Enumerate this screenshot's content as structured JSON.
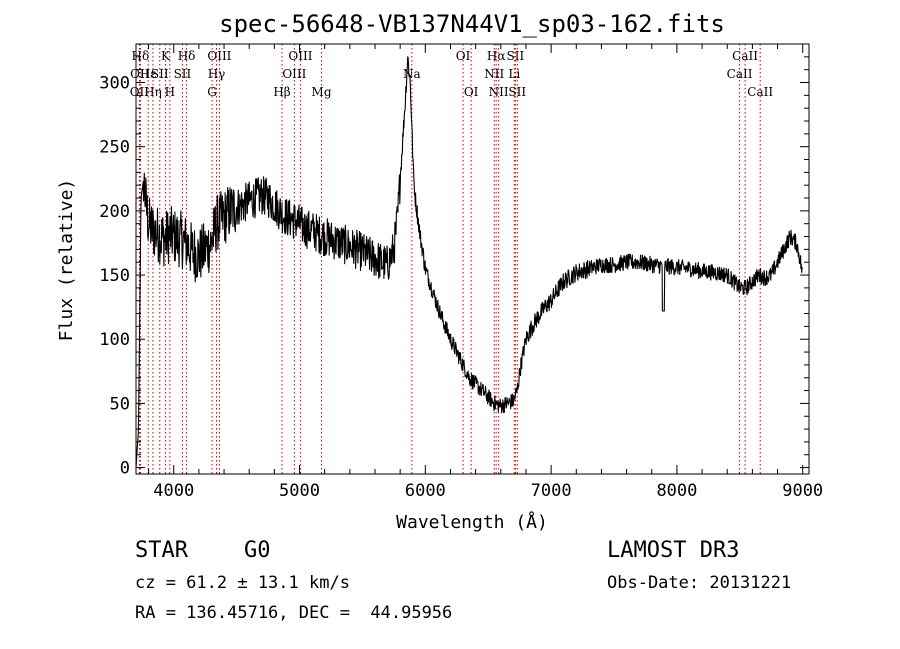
{
  "chart_data": {
    "type": "line",
    "title": "spec-56648-VB137N44V1_sp03-162.fits",
    "xlabel": "Wavelength (Å)",
    "ylabel": "Flux (relative)",
    "xlim": [
      3700,
      9050
    ],
    "ylim": [
      -5,
      330
    ],
    "x_ticks": [
      4000,
      5000,
      6000,
      7000,
      8000,
      9000
    ],
    "y_ticks": [
      0,
      50,
      100,
      150,
      200,
      250,
      300
    ],
    "grid": false,
    "line_color": "#000000",
    "marker_color": "#cc0000",
    "spectrum_anchors": {
      "x": [
        3700,
        3720,
        3740,
        3760,
        3780,
        3800,
        3830,
        3860,
        3900,
        3930,
        3970,
        4000,
        4050,
        4100,
        4150,
        4200,
        4250,
        4300,
        4340,
        4400,
        4450,
        4500,
        4550,
        4600,
        4650,
        4700,
        4750,
        4800,
        4860,
        4900,
        4950,
        5000,
        5050,
        5100,
        5150,
        5200,
        5250,
        5300,
        5350,
        5400,
        5450,
        5500,
        5550,
        5600,
        5650,
        5700,
        5750,
        5780,
        5810,
        5840,
        5860,
        5880,
        5895,
        5905,
        5920,
        5940,
        5960,
        5980,
        6000,
        6050,
        6100,
        6150,
        6200,
        6250,
        6300,
        6350,
        6400,
        6450,
        6500,
        6550,
        6600,
        6650,
        6700,
        6730,
        6760,
        6800,
        6850,
        6900,
        6950,
        7000,
        7050,
        7100,
        7200,
        7300,
        7400,
        7500,
        7600,
        7700,
        7800,
        7900,
        8000,
        8100,
        8200,
        8300,
        8400,
        8450,
        8500,
        8550,
        8600,
        8650,
        8700,
        8750,
        8800,
        8850,
        8900,
        8950,
        8980,
        9000
      ],
      "y": [
        0,
        30,
        210,
        225,
        205,
        190,
        185,
        183,
        180,
        178,
        182,
        180,
        178,
        175,
        168,
        165,
        170,
        175,
        190,
        195,
        200,
        203,
        205,
        208,
        210,
        212,
        210,
        205,
        198,
        195,
        193,
        190,
        186,
        185,
        182,
        180,
        178,
        176,
        174,
        172,
        170,
        168,
        165,
        163,
        160,
        158,
        170,
        195,
        240,
        285,
        320,
        300,
        260,
        230,
        210,
        195,
        180,
        168,
        155,
        140,
        125,
        112,
        100,
        90,
        80,
        70,
        65,
        60,
        55,
        50,
        48,
        50,
        52,
        60,
        80,
        100,
        110,
        118,
        125,
        130,
        138,
        145,
        152,
        155,
        158,
        158,
        160,
        160,
        158,
        157,
        156,
        155,
        153,
        152,
        150,
        145,
        140,
        140,
        145,
        150,
        148,
        150,
        160,
        170,
        180,
        175,
        162,
        150
      ]
    },
    "line_markers": [
      {
        "label": "Hδ",
        "x": 3735,
        "row": 0
      },
      {
        "label": "OII",
        "x": 3730,
        "row": 1
      },
      {
        "label": "OII",
        "x": 3727,
        "row": 2
      },
      {
        "label": "Hε",
        "x": 3797,
        "row": 1
      },
      {
        "label": "Hη",
        "x": 3835,
        "row": 2
      },
      {
        "label": "K",
        "x": 3934,
        "row": 0
      },
      {
        "label": "H",
        "x": 3969,
        "row": 2
      },
      {
        "label": "SII",
        "x": 3889,
        "row": 1
      },
      {
        "label": "Hδ",
        "x": 4102,
        "row": 0
      },
      {
        "label": "SII",
        "x": 4069,
        "row": 1
      },
      {
        "label": "OIII",
        "x": 4363,
        "row": 0
      },
      {
        "label": "Hγ",
        "x": 4340,
        "row": 1
      },
      {
        "label": "G",
        "x": 4305,
        "row": 2
      },
      {
        "label": "Hβ",
        "x": 4861,
        "row": 2
      },
      {
        "label": "OIII",
        "x": 5007,
        "row": 0
      },
      {
        "label": "OIII",
        "x": 4959,
        "row": 1
      },
      {
        "label": "Mg",
        "x": 5175,
        "row": 2
      },
      {
        "label": "Na",
        "x": 5893,
        "row": 1
      },
      {
        "label": "OI",
        "x": 6300,
        "row": 0
      },
      {
        "label": "OI",
        "x": 6364,
        "row": 2
      },
      {
        "label": "Hα",
        "x": 6563,
        "row": 0
      },
      {
        "label": "NII",
        "x": 6548,
        "row": 1
      },
      {
        "label": "NII",
        "x": 6583,
        "row": 2
      },
      {
        "label": "SII",
        "x": 6716,
        "row": 0
      },
      {
        "label": "Li",
        "x": 6707,
        "row": 1
      },
      {
        "label": "SII",
        "x": 6731,
        "row": 2
      },
      {
        "label": "CaII",
        "x": 8542,
        "row": 0
      },
      {
        "label": "CaII",
        "x": 8498,
        "row": 1
      },
      {
        "label": "CaII",
        "x": 8662,
        "row": 2
      }
    ]
  },
  "footer": {
    "object_class": "STAR",
    "subclass": "G0",
    "cz": "cz = 61.2 ± 13.1 km/s",
    "radec": "RA = 136.45716, DEC =  44.95956",
    "survey": "LAMOST DR3",
    "obs_date": "Obs-Date: 20131221"
  }
}
